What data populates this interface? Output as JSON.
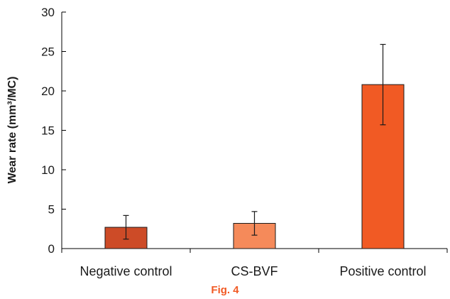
{
  "chart_data": {
    "type": "bar",
    "categories": [
      "Negative control",
      "CS-BVF",
      "Positive control"
    ],
    "values": [
      2.7,
      3.2,
      20.8
    ],
    "error": [
      1.5,
      1.5,
      5.1
    ],
    "ylabel": "Wear rate (mm³/MC)",
    "xlabel": "",
    "ylim": [
      0,
      30
    ],
    "yticks": [
      0,
      5,
      10,
      15,
      20,
      25,
      30
    ],
    "bar_colors": [
      "#cd4b27",
      "#f58a5a",
      "#f15a24"
    ],
    "grid": false
  },
  "caption": "Fig. 4",
  "caption_color": "#f15a24"
}
